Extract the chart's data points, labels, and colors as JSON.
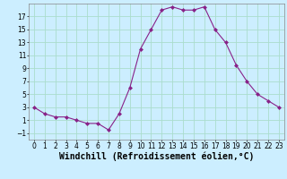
{
  "x": [
    0,
    1,
    2,
    3,
    4,
    5,
    6,
    7,
    8,
    9,
    10,
    11,
    12,
    13,
    14,
    15,
    16,
    17,
    18,
    19,
    20,
    21,
    22,
    23
  ],
  "y": [
    3,
    2,
    1.5,
    1.5,
    1,
    0.5,
    0.5,
    -0.5,
    2,
    6,
    12,
    15,
    18,
    18.5,
    18,
    18,
    18.5,
    15,
    13,
    9.5,
    7,
    5,
    4,
    3
  ],
  "line_color": "#882288",
  "marker": "D",
  "marker_size": 2,
  "bg_color": "#cceeff",
  "grid_color": "#aaddcc",
  "xlabel": "Windchill (Refroidissement éolien,°C)",
  "xlabel_fontsize": 7,
  "ylim": [
    -2,
    19
  ],
  "xlim": [
    -0.5,
    23.5
  ],
  "yticks": [
    -1,
    1,
    3,
    5,
    7,
    9,
    11,
    13,
    15,
    17
  ],
  "xticks": [
    0,
    1,
    2,
    3,
    4,
    5,
    6,
    7,
    8,
    9,
    10,
    11,
    12,
    13,
    14,
    15,
    16,
    17,
    18,
    19,
    20,
    21,
    22,
    23
  ],
  "tick_fontsize": 5.5
}
